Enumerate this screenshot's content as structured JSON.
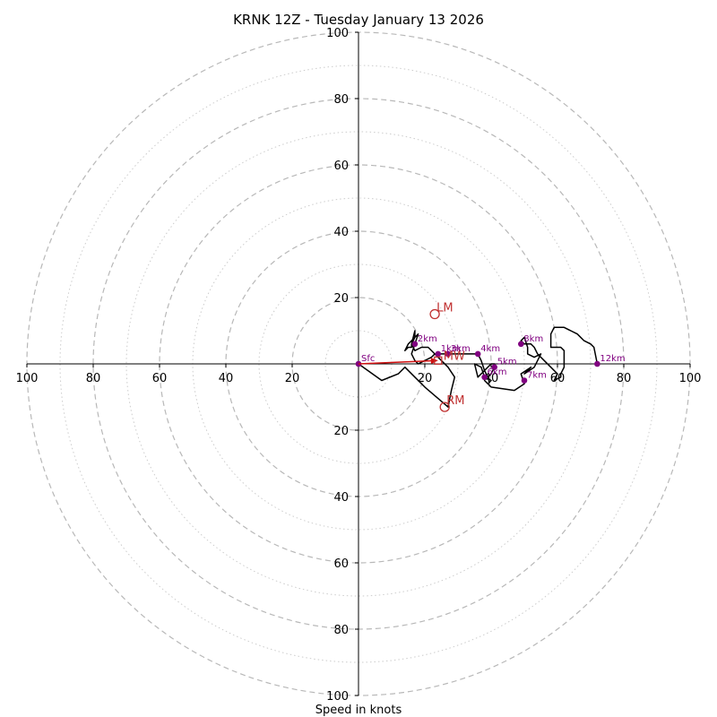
{
  "chart_data": {
    "type": "hodograph",
    "title": "KRNK 12Z - Tuesday January 13 2026",
    "xlabel": "Speed in knots",
    "range": [
      -100,
      100
    ],
    "ring_major": [
      20,
      40,
      60,
      80,
      100
    ],
    "ring_minor": [
      10,
      30,
      50,
      70,
      90
    ],
    "x_ticks": [
      {
        "v": -100,
        "label": "100"
      },
      {
        "v": -80,
        "label": "80"
      },
      {
        "v": -60,
        "label": "60"
      },
      {
        "v": -40,
        "label": "40"
      },
      {
        "v": -20,
        "label": "20"
      },
      {
        "v": 20,
        "label": "20"
      },
      {
        "v": 40,
        "label": "40"
      },
      {
        "v": 60,
        "label": "60"
      },
      {
        "v": 80,
        "label": "80"
      },
      {
        "v": 100,
        "label": "100"
      }
    ],
    "y_ticks": [
      {
        "v": 100,
        "label": "100"
      },
      {
        "v": 80,
        "label": "80"
      },
      {
        "v": 60,
        "label": "60"
      },
      {
        "v": 40,
        "label": "40"
      },
      {
        "v": 20,
        "label": "20"
      },
      {
        "v": -20,
        "label": "20"
      },
      {
        "v": -40,
        "label": "40"
      },
      {
        "v": -60,
        "label": "60"
      },
      {
        "v": -80,
        "label": "80"
      },
      {
        "v": -100,
        "label": "100"
      }
    ],
    "wind_trace_u_v": [
      [
        0,
        0
      ],
      [
        7,
        -5
      ],
      [
        12,
        -3
      ],
      [
        14,
        -1
      ],
      [
        17,
        -4
      ],
      [
        20,
        -7
      ],
      [
        27,
        -13
      ],
      [
        28,
        -8
      ],
      [
        29,
        -4
      ],
      [
        27,
        -1
      ],
      [
        25,
        1
      ],
      [
        23,
        3
      ],
      [
        21,
        5
      ],
      [
        19,
        5
      ],
      [
        17,
        4
      ],
      [
        16,
        6
      ],
      [
        17,
        10
      ],
      [
        17,
        8
      ],
      [
        16,
        6
      ],
      [
        16,
        5
      ],
      [
        15,
        5
      ],
      [
        14,
        4
      ],
      [
        15,
        6
      ],
      [
        17,
        8
      ],
      [
        18,
        9
      ],
      [
        17,
        6
      ],
      [
        16,
        3
      ],
      [
        17,
        1
      ],
      [
        18,
        0
      ],
      [
        20,
        1
      ],
      [
        22,
        2
      ],
      [
        23,
        3
      ],
      [
        25,
        3
      ],
      [
        27,
        3
      ],
      [
        29,
        3
      ],
      [
        31,
        3
      ],
      [
        36,
        3
      ],
      [
        37,
        1
      ],
      [
        38,
        -2
      ],
      [
        39,
        -4
      ],
      [
        40,
        -3
      ],
      [
        41,
        -1
      ],
      [
        41,
        0
      ],
      [
        40,
        0
      ],
      [
        38,
        -2
      ],
      [
        36,
        -4
      ],
      [
        35,
        0
      ],
      [
        37,
        -1
      ],
      [
        38,
        -4
      ],
      [
        40,
        -5
      ],
      [
        39,
        -6
      ],
      [
        38,
        -5
      ],
      [
        40,
        -7
      ],
      [
        47,
        -8
      ],
      [
        50,
        -6
      ],
      [
        49,
        -3
      ],
      [
        52,
        -1
      ],
      [
        50,
        -3
      ],
      [
        53,
        -1
      ],
      [
        54,
        1
      ],
      [
        55,
        3
      ],
      [
        53,
        2
      ],
      [
        51,
        3
      ],
      [
        51,
        5
      ],
      [
        50,
        8
      ],
      [
        49,
        7
      ],
      [
        50,
        6
      ],
      [
        52,
        6
      ],
      [
        53,
        5
      ],
      [
        54,
        3
      ],
      [
        56,
        1
      ],
      [
        58,
        -1
      ],
      [
        60,
        -3
      ],
      [
        59,
        -5
      ],
      [
        61,
        -4
      ],
      [
        61,
        -3
      ],
      [
        62,
        -1
      ],
      [
        62,
        1
      ],
      [
        62,
        3
      ],
      [
        62,
        4
      ],
      [
        61,
        5
      ],
      [
        58,
        5
      ],
      [
        58,
        9
      ],
      [
        59,
        11
      ],
      [
        62,
        11
      ],
      [
        64,
        10
      ],
      [
        66,
        9
      ],
      [
        68,
        7
      ],
      [
        70,
        6
      ],
      [
        71,
        5
      ],
      [
        72,
        0
      ]
    ],
    "km_markers": [
      {
        "label": "Sfc",
        "u": 0,
        "v": 0
      },
      {
        "label": "1km",
        "u": 24,
        "v": 3
      },
      {
        "label": "2km",
        "u": 17,
        "v": 6
      },
      {
        "label": "3km",
        "u": 27,
        "v": 3
      },
      {
        "label": "4km",
        "u": 36,
        "v": 3
      },
      {
        "label": "5km",
        "u": 41,
        "v": -1
      },
      {
        "label": "6km",
        "u": 38,
        "v": -4
      },
      {
        "label": "7km",
        "u": 50,
        "v": -5
      },
      {
        "label": "8km",
        "u": 49,
        "v": 6
      },
      {
        "label": "12km",
        "u": 72,
        "v": 0
      }
    ],
    "storm_motion": [
      {
        "label": "LM",
        "u": 23,
        "v": 15
      },
      {
        "label": "RM",
        "u": 26,
        "v": -13
      }
    ],
    "mean_wind": {
      "u": 24,
      "v": 1,
      "label": "MW"
    },
    "colors": {
      "trace": "#000000",
      "km_marker": "#800080",
      "storm_motion": "#c03030",
      "mean_vector": "#d01010",
      "ring": "#b8b8b8",
      "axis": "#000000"
    }
  }
}
